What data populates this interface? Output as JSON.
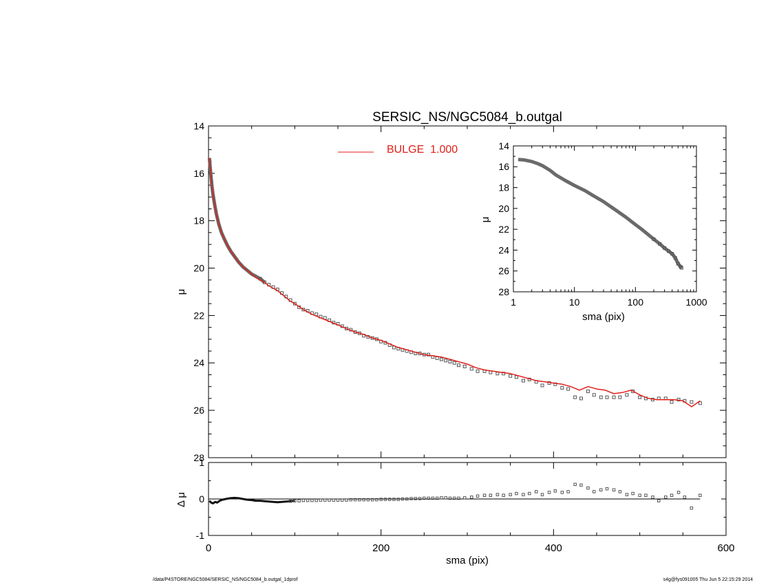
{
  "chart_data": [
    {
      "id": "main",
      "type": "scatter",
      "title": "SERSIC_NS/NGC5084_b.outgal",
      "xlabel": "",
      "ylabel": "μ",
      "xlim": [
        0,
        600
      ],
      "ylim": [
        28,
        14
      ],
      "y_inverted": true,
      "xticks": [
        0,
        200,
        400,
        600
      ],
      "yticks": [
        14,
        16,
        18,
        20,
        22,
        24,
        26,
        28
      ],
      "legend": {
        "label": "BULGE  1.000",
        "color": "#e0201a",
        "placement": "top-center"
      },
      "observed": {
        "x": [
          1,
          2,
          3,
          4,
          5,
          7,
          9,
          12,
          15,
          18,
          22,
          26,
          30,
          35,
          40,
          45,
          50,
          55,
          60,
          65,
          70,
          75,
          80,
          85,
          90,
          95,
          100,
          105,
          110,
          115,
          120,
          125,
          130,
          135,
          140,
          145,
          150,
          155,
          160,
          165,
          170,
          175,
          180,
          185,
          190,
          195,
          200,
          205,
          210,
          215,
          220,
          225,
          230,
          235,
          240,
          245,
          250,
          255,
          260,
          265,
          270,
          275,
          280,
          285,
          290,
          297,
          305,
          312,
          320,
          327,
          335,
          342,
          350,
          357,
          365,
          372,
          380,
          387,
          395,
          402,
          410,
          417,
          425,
          432,
          440,
          447,
          455,
          462,
          470,
          477,
          485,
          492,
          500,
          507,
          515,
          522,
          530,
          537,
          545,
          552,
          560,
          570
        ],
        "y": [
          15.35,
          15.8,
          16.2,
          16.55,
          16.85,
          17.3,
          17.7,
          18.15,
          18.5,
          18.75,
          19.05,
          19.3,
          19.5,
          19.75,
          19.95,
          20.1,
          20.25,
          20.35,
          20.45,
          20.6,
          20.7,
          20.8,
          20.9,
          21.05,
          21.2,
          21.35,
          21.5,
          21.65,
          21.75,
          21.8,
          21.9,
          21.95,
          22.05,
          22.1,
          22.2,
          22.3,
          22.35,
          22.45,
          22.55,
          22.6,
          22.7,
          22.75,
          22.85,
          22.9,
          22.95,
          23.0,
          23.1,
          23.15,
          23.25,
          23.35,
          23.4,
          23.45,
          23.5,
          23.55,
          23.6,
          23.6,
          23.65,
          23.65,
          23.75,
          23.8,
          23.85,
          23.9,
          23.95,
          24.0,
          24.1,
          24.15,
          24.25,
          24.35,
          24.35,
          24.4,
          24.45,
          24.45,
          24.55,
          24.6,
          24.75,
          24.7,
          24.8,
          24.95,
          24.85,
          24.9,
          25.05,
          25.1,
          25.45,
          25.5,
          25.2,
          25.35,
          25.45,
          25.45,
          25.45,
          25.45,
          25.35,
          25.2,
          25.45,
          25.5,
          25.55,
          25.5,
          25.5,
          25.65,
          25.55,
          25.6,
          25.65,
          25.7
        ]
      },
      "model": {
        "name": "BULGE  1.000",
        "x": [
          1,
          2,
          3,
          4,
          5,
          7,
          9,
          12,
          15,
          18,
          22,
          26,
          30,
          35,
          40,
          45,
          50,
          55,
          60,
          65,
          70,
          75,
          80,
          85,
          90,
          95,
          100,
          110,
          120,
          130,
          140,
          150,
          160,
          170,
          180,
          190,
          200,
          210,
          220,
          230,
          240,
          250,
          260,
          270,
          280,
          290,
          300,
          310,
          320,
          330,
          340,
          350,
          360,
          370,
          380,
          390,
          400,
          410,
          420,
          430,
          440,
          450,
          460,
          470,
          480,
          490,
          500,
          510,
          520,
          530,
          540,
          550,
          560,
          570
        ],
        "y": [
          15.35,
          15.8,
          16.2,
          16.55,
          16.85,
          17.3,
          17.7,
          18.15,
          18.5,
          18.75,
          19.05,
          19.3,
          19.5,
          19.75,
          19.95,
          20.1,
          20.25,
          20.4,
          20.5,
          20.6,
          20.75,
          20.85,
          20.95,
          21.1,
          21.25,
          21.4,
          21.5,
          21.75,
          21.95,
          22.1,
          22.25,
          22.4,
          22.55,
          22.7,
          22.8,
          22.95,
          23.05,
          23.2,
          23.35,
          23.45,
          23.55,
          23.65,
          23.7,
          23.75,
          23.85,
          23.95,
          24.05,
          24.2,
          24.3,
          24.35,
          24.4,
          24.45,
          24.55,
          24.65,
          24.75,
          24.8,
          24.85,
          24.9,
          25.0,
          25.15,
          25.0,
          25.1,
          25.15,
          25.3,
          25.25,
          25.15,
          25.35,
          25.5,
          25.55,
          25.55,
          25.55,
          25.6,
          25.85,
          25.6
        ]
      }
    },
    {
      "id": "residual",
      "type": "scatter",
      "title": "",
      "xlabel": "sma (pix)",
      "ylabel": "Δ μ",
      "xlim": [
        0,
        600
      ],
      "ylim": [
        -1,
        1
      ],
      "xticks": [
        0,
        200,
        400,
        600
      ],
      "yticks": [
        1,
        0,
        -1
      ],
      "zero_line": {
        "y": 0,
        "x_range": [
          0,
          570
        ]
      },
      "x": [
        1,
        3,
        5,
        8,
        10,
        13,
        16,
        20,
        25,
        30,
        35,
        40,
        45,
        50,
        55,
        60,
        65,
        70,
        75,
        80,
        85,
        90,
        95,
        100,
        105,
        110,
        115,
        120,
        125,
        130,
        135,
        140,
        145,
        150,
        155,
        160,
        165,
        170,
        175,
        180,
        185,
        190,
        195,
        200,
        205,
        210,
        215,
        220,
        225,
        230,
        235,
        240,
        245,
        250,
        255,
        260,
        265,
        270,
        275,
        280,
        285,
        290,
        297,
        305,
        312,
        320,
        327,
        335,
        342,
        350,
        357,
        365,
        372,
        380,
        387,
        395,
        402,
        410,
        417,
        425,
        432,
        440,
        447,
        455,
        462,
        470,
        477,
        485,
        492,
        500,
        507,
        515,
        522,
        530,
        537,
        545,
        552,
        560,
        570
      ],
      "y": [
        -0.05,
        -0.1,
        -0.12,
        -0.08,
        -0.1,
        -0.05,
        -0.02,
        0.0,
        0.02,
        0.03,
        0.02,
        0.0,
        -0.02,
        -0.03,
        -0.05,
        -0.05,
        -0.06,
        -0.07,
        -0.08,
        -0.09,
        -0.08,
        -0.07,
        -0.06,
        -0.05,
        -0.05,
        -0.04,
        -0.04,
        -0.04,
        -0.04,
        -0.03,
        -0.03,
        -0.03,
        -0.03,
        -0.03,
        -0.03,
        -0.03,
        -0.02,
        -0.02,
        -0.02,
        -0.02,
        -0.02,
        -0.02,
        -0.02,
        -0.01,
        -0.01,
        -0.01,
        -0.01,
        -0.01,
        0.0,
        0.0,
        0.01,
        0.01,
        0.01,
        0.02,
        0.02,
        0.02,
        0.02,
        0.03,
        0.03,
        0.02,
        0.02,
        0.02,
        0.03,
        0.05,
        0.08,
        0.1,
        0.1,
        0.12,
        0.1,
        0.12,
        0.15,
        0.12,
        0.15,
        0.2,
        0.12,
        0.18,
        0.22,
        0.18,
        0.2,
        0.4,
        0.38,
        0.3,
        0.2,
        0.25,
        0.28,
        0.25,
        0.2,
        0.12,
        0.15,
        0.1,
        0.1,
        0.05,
        -0.05,
        0.05,
        0.1,
        0.18,
        0.05,
        -0.25,
        0.1
      ]
    },
    {
      "id": "inset",
      "type": "scatter",
      "title": "",
      "xlabel": "sma (pix)",
      "ylabel": "μ",
      "xscale": "log",
      "xlim": [
        1,
        1000
      ],
      "ylim": [
        28,
        14
      ],
      "y_inverted": true,
      "xticks": [
        1,
        10,
        100,
        1000
      ],
      "xtick_labels": [
        "1",
        "10",
        "100",
        "1000"
      ],
      "yticks": [
        14,
        16,
        18,
        20,
        22,
        24,
        26,
        28
      ],
      "x": [
        1.2,
        1.5,
        2.0,
        2.5,
        3.0,
        4.0,
        5.0,
        7.0,
        10,
        15,
        20,
        30,
        50,
        70,
        100,
        130,
        150,
        200,
        250,
        300,
        350,
        400,
        450,
        500,
        550,
        570
      ],
      "y": [
        15.3,
        15.35,
        15.5,
        15.7,
        15.9,
        16.35,
        16.8,
        17.3,
        17.8,
        18.3,
        18.75,
        19.35,
        20.25,
        20.85,
        21.55,
        22.05,
        22.35,
        22.95,
        23.4,
        23.8,
        24.1,
        24.35,
        24.75,
        25.3,
        25.6,
        25.7
      ]
    }
  ],
  "footer": {
    "left": "/data/P4STORE/NGC5084/SERSIC_NS/NGC5084_b.outgal_1dprof",
    "right": "s4g@fys091005  Thu Jun  5 22:15:29 2014"
  },
  "colors": {
    "model": "#e0201a",
    "points": "#555555",
    "axes": "#000000"
  }
}
